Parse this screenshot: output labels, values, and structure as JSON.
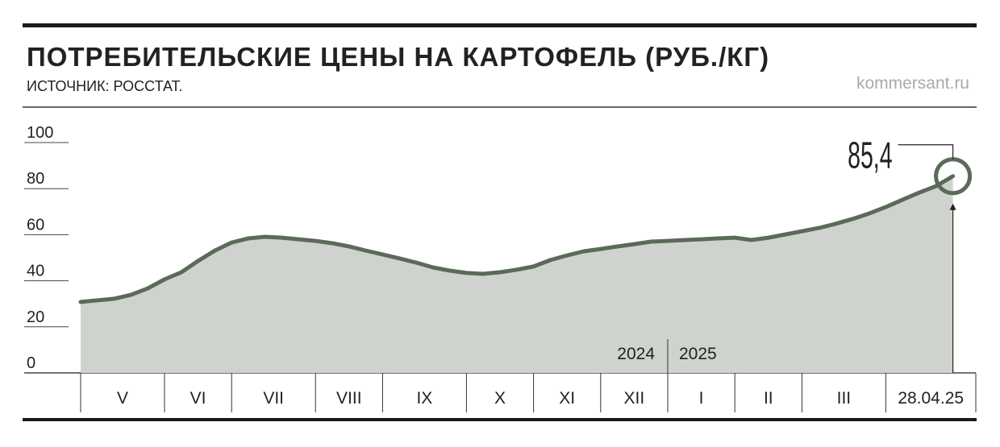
{
  "chart_data": {
    "type": "area",
    "title": "ПОТРЕБИТЕЛЬСКИЕ ЦЕНЫ НА КАРТОФЕЛЬ (РУБ./КГ)",
    "subtitle": "ИСТОЧНИК: РОССТАТ.",
    "source": "kommersant.ru",
    "categories": [
      "V",
      null,
      null,
      null,
      null,
      "VI",
      null,
      null,
      null,
      "VII",
      null,
      null,
      null,
      null,
      "VIII",
      null,
      null,
      null,
      "IX",
      null,
      null,
      null,
      null,
      "X",
      null,
      null,
      null,
      "XI",
      null,
      null,
      null,
      "XII",
      null,
      null,
      null,
      "I",
      null,
      null,
      null,
      "II",
      null,
      null,
      null,
      "III",
      null,
      null,
      null,
      null,
      "28.04.25",
      null,
      null,
      null,
      null
    ],
    "years": [
      "2024",
      "2025"
    ],
    "series": [
      {
        "color": "#5a6b58",
        "fill": "#cfd3ce",
        "values": [
          30.8,
          31.5,
          32.2,
          33.9,
          36.7,
          40.6,
          43.7,
          48.6,
          53.1,
          56.6,
          58.4,
          59.1,
          58.7,
          58.0,
          57.3,
          56.3,
          54.9,
          53.1,
          51.4,
          49.7,
          47.9,
          45.8,
          44.4,
          43.4,
          43.0,
          43.7,
          44.8,
          46.2,
          49.0,
          51.0,
          52.8,
          53.8,
          54.9,
          55.9,
          57.0,
          57.3,
          57.7,
          58.0,
          58.4,
          58.7,
          57.7,
          58.7,
          60.1,
          61.5,
          62.9,
          64.7,
          66.8,
          69.2,
          72.0,
          75.2,
          78.3,
          81.1,
          85.4
        ],
        "value_labels": [
          null,
          null,
          null,
          null,
          null,
          null,
          null,
          null,
          null,
          null,
          null,
          null,
          null,
          null,
          null,
          null,
          null,
          null,
          null,
          null,
          null,
          null,
          null,
          null,
          null,
          null,
          null,
          null,
          null,
          null,
          null,
          null,
          null,
          null,
          null,
          null,
          null,
          null,
          null,
          null,
          null,
          null,
          null,
          null,
          null,
          null,
          null,
          null,
          null,
          null,
          null,
          null,
          "85,4"
        ]
      }
    ],
    "ylim": [
      0,
      100
    ],
    "yticks": [
      0,
      20,
      40,
      60,
      80,
      100
    ]
  }
}
